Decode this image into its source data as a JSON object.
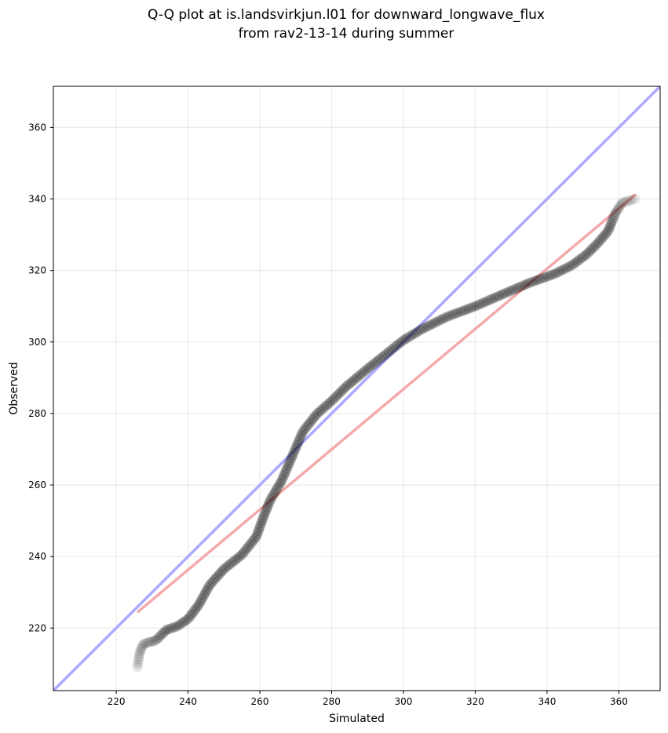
{
  "chart_data": {
    "type": "scatter",
    "title_lines": [
      "Q-Q plot at is.landsvirkjun.l01 for downward_longwave_flux",
      "from rav2-13-14 during summer"
    ],
    "xlabel": "Simulated",
    "ylabel": "Observed",
    "xlim": [
      202.5,
      371.5
    ],
    "ylim": [
      202.5,
      371.5
    ],
    "xticks": [
      "220",
      "240",
      "260",
      "280",
      "300",
      "320",
      "340",
      "360"
    ],
    "yticks": [
      "220",
      "240",
      "260",
      "280",
      "300",
      "320",
      "340",
      "360"
    ],
    "grid": true,
    "reference_line": {
      "name": "1:1 line",
      "color": "#aaaaff",
      "points": [
        [
          202.5,
          202.5
        ],
        [
          371.5,
          371.5
        ]
      ]
    },
    "fit_line": {
      "name": "linear fit",
      "color": "#f4aaaa",
      "points": [
        [
          225.9,
          224.4
        ],
        [
          364.7,
          341.3
        ]
      ]
    },
    "point_color": "#000000",
    "quantile_knots": [
      [
        225.9,
        209.0
      ],
      [
        226.5,
        213.0
      ],
      [
        227.5,
        215.5
      ],
      [
        229.0,
        216.0
      ],
      [
        231.0,
        216.5
      ],
      [
        234.0,
        219.5
      ],
      [
        237.0,
        220.5
      ],
      [
        240.0,
        222.5
      ],
      [
        243.0,
        226.5
      ],
      [
        246.0,
        232.0
      ],
      [
        250.0,
        236.5
      ],
      [
        255.0,
        240.5
      ],
      [
        259.0,
        245.5
      ],
      [
        261.0,
        251.0
      ],
      [
        263.0,
        256.0
      ],
      [
        266.0,
        261.0
      ],
      [
        269.0,
        268.0
      ],
      [
        272.0,
        275.0
      ],
      [
        276.0,
        280.0
      ],
      [
        280.0,
        283.5
      ],
      [
        284.0,
        287.5
      ],
      [
        290.0,
        292.5
      ],
      [
        295.0,
        296.5
      ],
      [
        300.0,
        300.5
      ],
      [
        305.0,
        303.5
      ],
      [
        312.0,
        307.0
      ],
      [
        320.0,
        310.0
      ],
      [
        328.0,
        313.5
      ],
      [
        335.0,
        316.5
      ],
      [
        342.0,
        319.0
      ],
      [
        347.0,
        321.5
      ],
      [
        351.0,
        324.5
      ],
      [
        354.0,
        327.5
      ],
      [
        357.0,
        331.0
      ],
      [
        359.0,
        336.0
      ],
      [
        361.0,
        339.0
      ],
      [
        364.5,
        340.0
      ]
    ],
    "point_count": 260
  }
}
